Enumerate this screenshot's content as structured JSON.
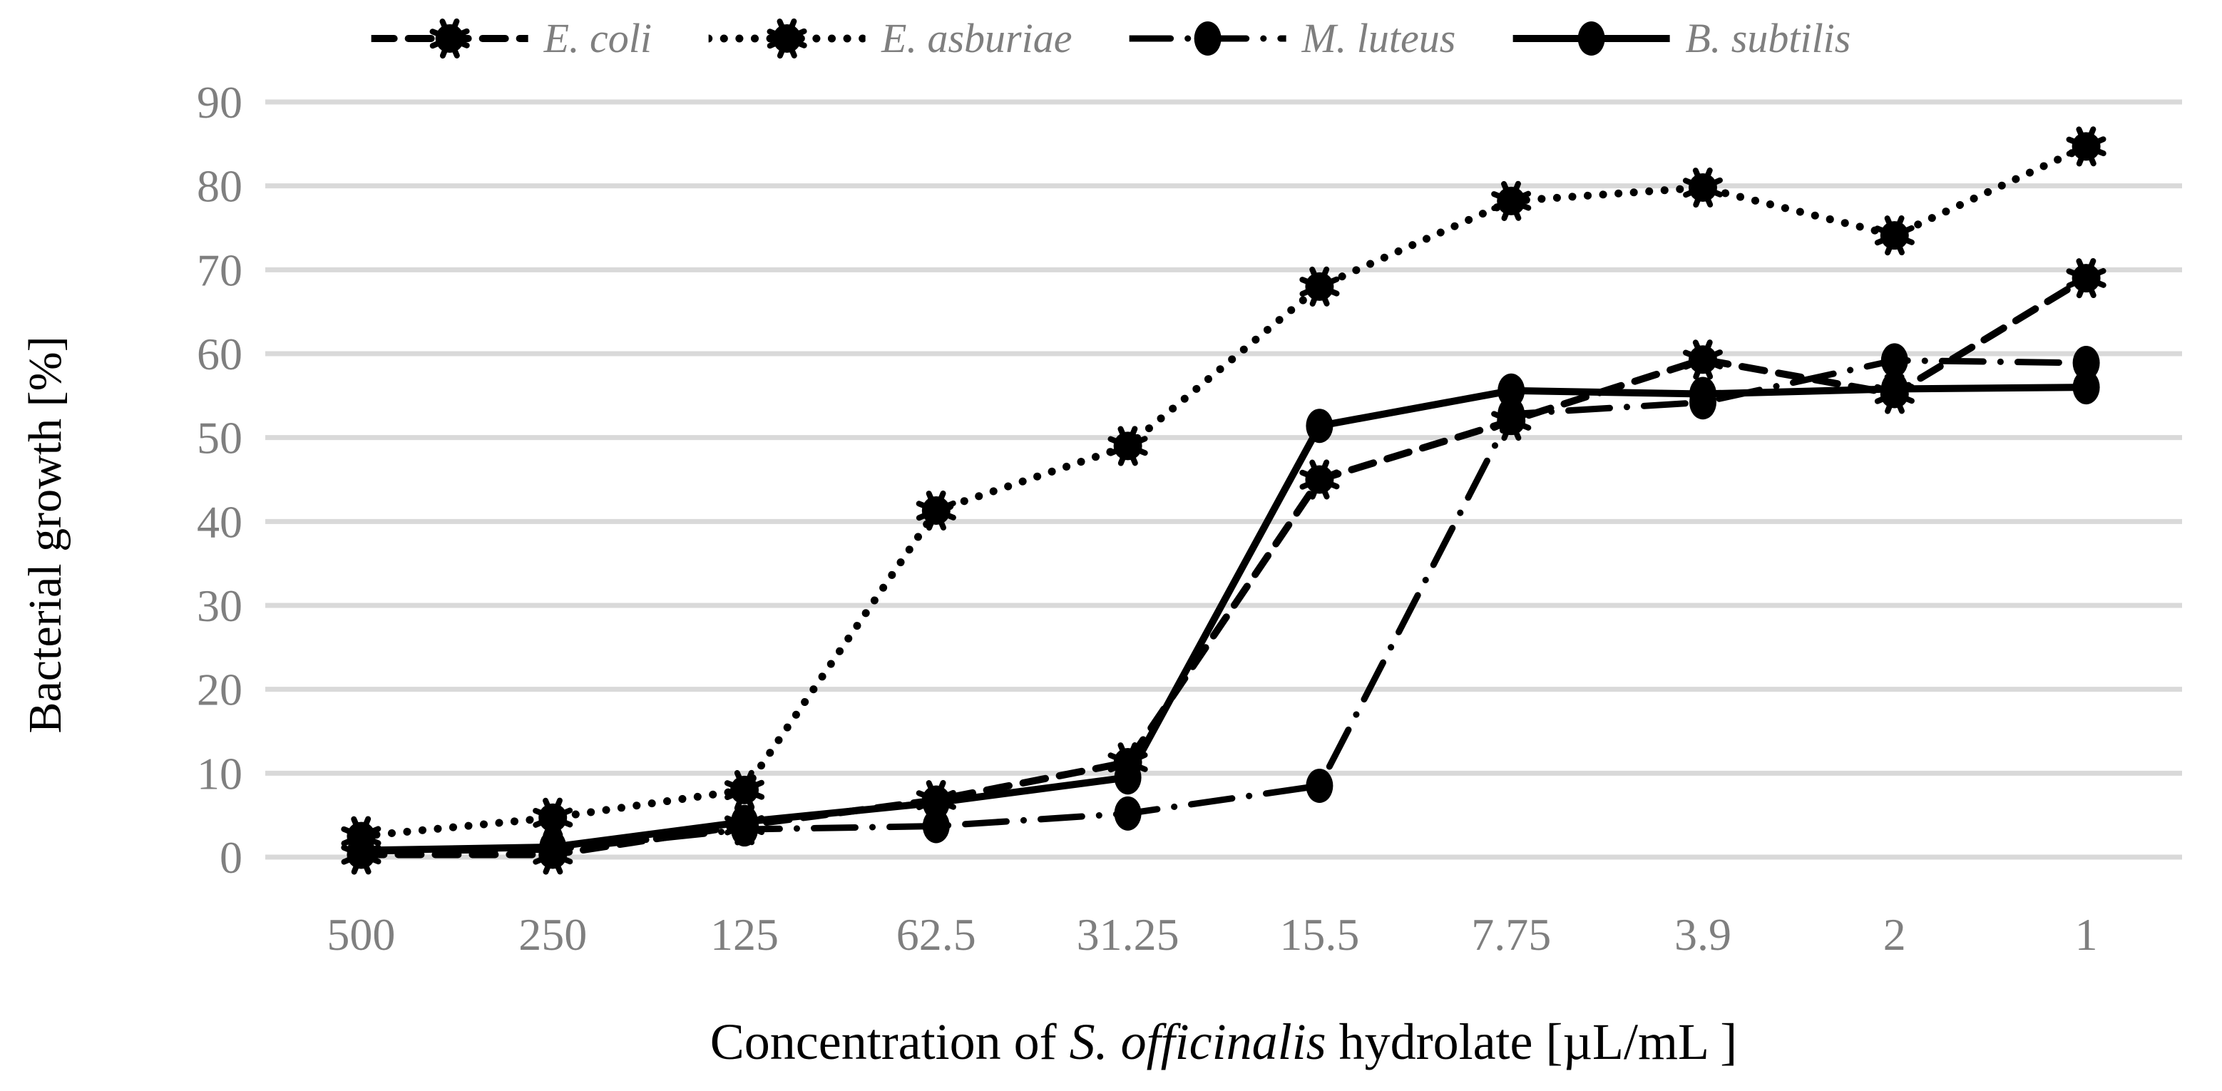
{
  "chart_data": {
    "type": "line",
    "title": "",
    "x_categories": [
      "500",
      "250",
      "125",
      "62.5",
      "31.25",
      "15.5",
      "7.75",
      "3.9",
      "2",
      "1"
    ],
    "xlabel": {
      "prefix": "Concentration of ",
      "italic": "S. officinalis",
      "suffix": " hydrolate [µL/mL ]"
    },
    "ylabel": "Bacterial growth [%]",
    "ylim": [
      0,
      90
    ],
    "ytick_labels": [
      "0",
      "10",
      "20",
      "30",
      "40",
      "50",
      "60",
      "70",
      "80",
      "90"
    ],
    "grid": "horizontal",
    "legend_position": "top",
    "series": [
      {
        "name": "E. coli",
        "line_style": "dashed",
        "marker": "gear-circle",
        "color": "#000000",
        "values": [
          0.3,
          0.3,
          3.8,
          6.8,
          11.3,
          45.0,
          52.0,
          59.3,
          55.2,
          69.0
        ]
      },
      {
        "name": "E. asburiae",
        "line_style": "dotted",
        "marker": "gear-circle",
        "color": "#000000",
        "values": [
          2.5,
          4.7,
          8.0,
          41.3,
          49.0,
          68.0,
          78.2,
          79.8,
          74.1,
          84.7
        ]
      },
      {
        "name": "M. luteus",
        "line_style": "dash-dot",
        "marker": "circle",
        "color": "#000000",
        "values": [
          0.7,
          0.9,
          3.3,
          3.7,
          5.2,
          8.5,
          52.8,
          54.2,
          59.2,
          58.9
        ]
      },
      {
        "name": "B. subtilis",
        "line_style": "solid",
        "marker": "circle",
        "color": "#000000",
        "values": [
          0.8,
          1.2,
          4.2,
          6.5,
          9.5,
          51.4,
          55.6,
          55.2,
          55.8,
          56.0
        ]
      }
    ],
    "colors": {
      "background": "#FFFFFF",
      "gridline": "#D9D9D9",
      "tick_label": "#7F7F7F",
      "legend_text": "#7F7F7F",
      "series": "#000000",
      "axis_title": "#000000"
    }
  }
}
